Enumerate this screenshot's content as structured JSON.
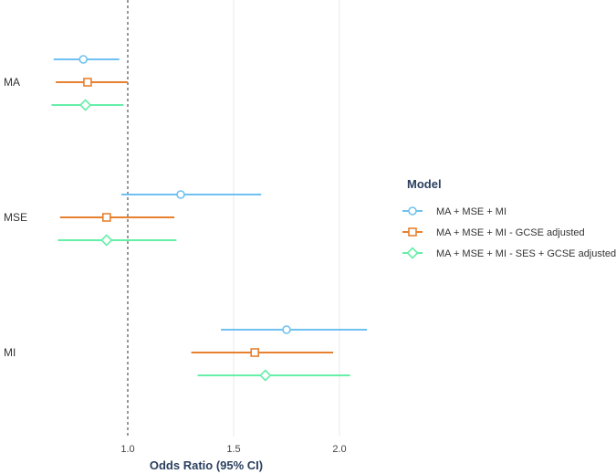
{
  "chart_data": {
    "type": "forest",
    "xlabel": "Odds Ratio (95% CI)",
    "ylabel": "",
    "title": "",
    "xlim": [
      0.64,
      2.2
    ],
    "x_ticks": [
      1.0,
      1.5,
      2.0
    ],
    "x_tick_labels": [
      "1.0",
      "1.5",
      "2.0"
    ],
    "reference_line": 1.0,
    "grid": "vertical",
    "categories": [
      "MA",
      "MSE",
      "MI"
    ],
    "legend": {
      "title": "Model",
      "position": "right"
    },
    "series": [
      {
        "name": "MA + MSE + MI",
        "color": "#6EC1F0",
        "marker": "circle",
        "points": [
          {
            "category": "MA",
            "or": 0.79,
            "lower": 0.65,
            "upper": 0.96
          },
          {
            "category": "MSE",
            "or": 1.25,
            "lower": 0.97,
            "upper": 1.63
          },
          {
            "category": "MI",
            "or": 1.75,
            "lower": 1.44,
            "upper": 2.13
          }
        ]
      },
      {
        "name": "MA + MSE + MI - GCSE adjusted",
        "color": "#E8812F",
        "marker": "square",
        "points": [
          {
            "category": "MA",
            "or": 0.81,
            "lower": 0.66,
            "upper": 1.0
          },
          {
            "category": "MSE",
            "or": 0.9,
            "lower": 0.68,
            "upper": 1.22
          },
          {
            "category": "MI",
            "or": 1.6,
            "lower": 1.3,
            "upper": 1.97
          }
        ]
      },
      {
        "name": "MA + MSE + MI - SES + GCSE adjusted",
        "color": "#66EFA8",
        "marker": "diamond",
        "points": [
          {
            "category": "MA",
            "or": 0.8,
            "lower": 0.64,
            "upper": 0.98
          },
          {
            "category": "MSE",
            "or": 0.9,
            "lower": 0.67,
            "upper": 1.23
          },
          {
            "category": "MI",
            "or": 1.65,
            "lower": 1.33,
            "upper": 2.05
          }
        ]
      }
    ]
  }
}
